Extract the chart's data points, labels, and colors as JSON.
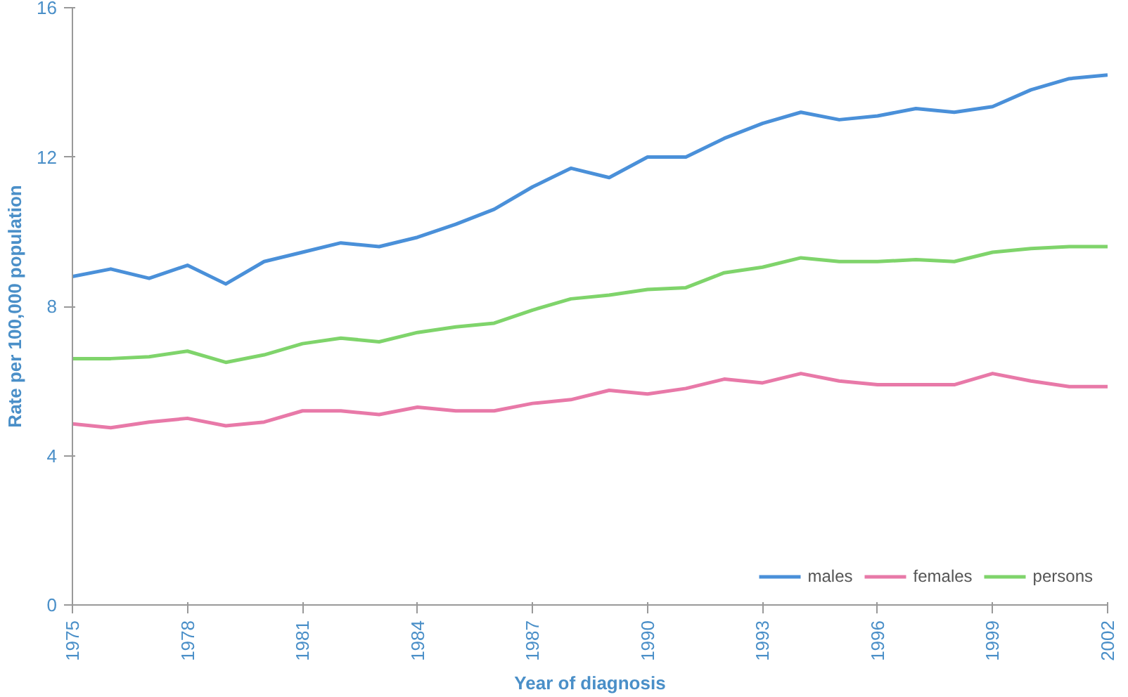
{
  "chart_data": {
    "type": "line",
    "xlabel": "Year of diagnosis",
    "ylabel": "Rate per 100,000 population",
    "x": [
      1975,
      1976,
      1977,
      1978,
      1979,
      1980,
      1981,
      1982,
      1983,
      1984,
      1985,
      1986,
      1987,
      1988,
      1989,
      1990,
      1991,
      1992,
      1993,
      1994,
      1995,
      1996,
      1997,
      1998,
      1999,
      2000,
      2001,
      2002
    ],
    "series": [
      {
        "name": "males",
        "color": "#4a90d9",
        "values": [
          8.8,
          9.0,
          8.75,
          9.1,
          8.6,
          9.2,
          9.45,
          9.7,
          9.6,
          9.85,
          10.2,
          10.6,
          11.2,
          11.7,
          11.45,
          12.0,
          12.0,
          12.5,
          12.9,
          13.2,
          13.0,
          13.1,
          13.3,
          13.2,
          13.35,
          13.8,
          14.1,
          14.2
        ]
      },
      {
        "name": "females",
        "color": "#e879a8",
        "values": [
          4.85,
          4.75,
          4.9,
          5.0,
          4.8,
          4.9,
          5.2,
          5.2,
          5.1,
          5.3,
          5.2,
          5.2,
          5.4,
          5.5,
          5.75,
          5.65,
          5.8,
          6.05,
          5.95,
          6.2,
          6.0,
          5.9,
          5.9,
          5.9,
          6.2,
          6.0,
          5.85,
          5.85
        ]
      },
      {
        "name": "persons",
        "color": "#7fd46b",
        "values": [
          6.6,
          6.6,
          6.65,
          6.8,
          6.5,
          6.7,
          7.0,
          7.15,
          7.05,
          7.3,
          7.45,
          7.55,
          7.9,
          8.2,
          8.3,
          8.45,
          8.5,
          8.9,
          9.05,
          9.3,
          9.2,
          9.2,
          9.25,
          9.2,
          9.45,
          9.55,
          9.6,
          9.6
        ]
      }
    ],
    "xlim": [
      1975,
      2002
    ],
    "xticks": [
      1975,
      1978,
      1981,
      1984,
      1987,
      1990,
      1993,
      1996,
      1999,
      2002
    ],
    "ylim": [
      0,
      16
    ],
    "yticks": [
      0,
      4,
      8,
      12,
      16
    ],
    "grid": false,
    "legend": "bottom right",
    "marker": "none",
    "line_style": "solid"
  }
}
